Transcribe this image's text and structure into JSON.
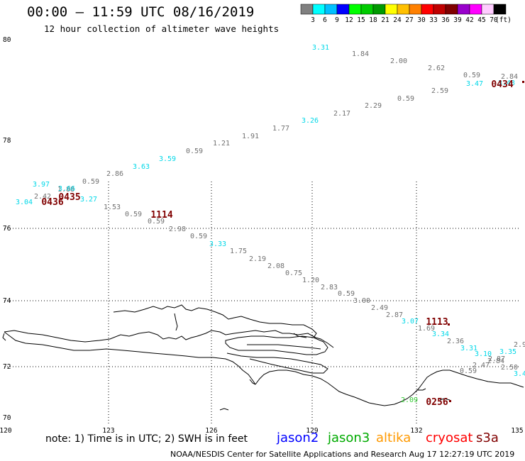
{
  "header": {
    "title": "00:00 – 11:59 UTC 08/16/2019",
    "subtitle": "12 hour collection of altimeter wave heights"
  },
  "colorbar": {
    "colors": [
      "#808080",
      "#00ffff",
      "#00c0ff",
      "#0000ff",
      "#00ff00",
      "#00cc00",
      "#009900",
      "#ffff00",
      "#ffc000",
      "#ff8000",
      "#ff0000",
      "#c00000",
      "#800000",
      "#9900cc",
      "#ff00ff",
      "#ffccff",
      "#000000"
    ],
    "labels": [
      "3",
      "6",
      "9",
      "12",
      "15",
      "18",
      "21",
      "24",
      "27",
      "30",
      "33",
      "36",
      "39",
      "42",
      "45",
      "70"
    ],
    "unit": "(ft)"
  },
  "axes": {
    "lon_labels": [
      "120",
      "123",
      "126",
      "129",
      "132",
      "135"
    ],
    "lat_labels": [
      "80",
      "78",
      "76",
      "74",
      "72",
      "70"
    ]
  },
  "swh_labels": [
    {
      "t": "3.31",
      "c": "#00d8e8"
    },
    {
      "t": "1.84",
      "c": "#707070"
    },
    {
      "t": "2.00",
      "c": "#707070"
    },
    {
      "t": "2.62",
      "c": "#707070"
    },
    {
      "t": "0.59",
      "c": "#707070"
    },
    {
      "t": "2.84",
      "c": "#707070"
    },
    {
      "t": "3.47",
      "c": "#00d8e8"
    },
    {
      "t": "3.43",
      "c": "#00d8e8"
    },
    {
      "t": "2.59",
      "c": "#707070"
    },
    {
      "t": "0.59",
      "c": "#707070"
    },
    {
      "t": "2.29",
      "c": "#707070"
    },
    {
      "t": "2.17",
      "c": "#707070"
    },
    {
      "t": "3.26",
      "c": "#00d8e8"
    },
    {
      "t": "1.77",
      "c": "#707070"
    },
    {
      "t": "1.91",
      "c": "#707070"
    },
    {
      "t": "1.21",
      "c": "#707070"
    },
    {
      "t": "0.59",
      "c": "#707070"
    },
    {
      "t": "3.59",
      "c": "#00d8e8"
    },
    {
      "t": "3.63",
      "c": "#00d8e8"
    },
    {
      "t": "2.86",
      "c": "#707070"
    },
    {
      "t": "0.59",
      "c": "#707070"
    },
    {
      "t": "3.97",
      "c": "#00d8e8"
    },
    {
      "t": "1.88",
      "c": "#707070"
    },
    {
      "t": "3.66",
      "c": "#00d8e8"
    },
    {
      "t": "2.42",
      "c": "#707070"
    },
    {
      "t": "3.27",
      "c": "#00d8e8"
    },
    {
      "t": "3.04",
      "c": "#00d8e8"
    },
    {
      "t": "1.53",
      "c": "#707070"
    },
    {
      "t": "0.59",
      "c": "#707070"
    },
    {
      "t": "0.59",
      "c": "#707070"
    },
    {
      "t": "2.98",
      "c": "#707070"
    },
    {
      "t": "0.59",
      "c": "#707070"
    },
    {
      "t": "3.33",
      "c": "#00d8e8"
    },
    {
      "t": "1.75",
      "c": "#707070"
    },
    {
      "t": "2.19",
      "c": "#707070"
    },
    {
      "t": "2.08",
      "c": "#707070"
    },
    {
      "t": "0.75",
      "c": "#707070"
    },
    {
      "t": "1.20",
      "c": "#707070"
    },
    {
      "t": "2.83",
      "c": "#707070"
    },
    {
      "t": "0.59",
      "c": "#707070"
    },
    {
      "t": "3.00",
      "c": "#707070"
    },
    {
      "t": "2.49",
      "c": "#707070"
    },
    {
      "t": "2.87",
      "c": "#707070"
    },
    {
      "t": "3.07",
      "c": "#00d8e8"
    },
    {
      "t": "1.69",
      "c": "#707070"
    },
    {
      "t": "3.34",
      "c": "#00d8e8"
    },
    {
      "t": "2.36",
      "c": "#707070"
    },
    {
      "t": "3.31",
      "c": "#00d8e8"
    },
    {
      "t": "3.10",
      "c": "#00d8e8"
    },
    {
      "t": "3.35",
      "c": "#00d8e8"
    },
    {
      "t": "2.87",
      "c": "#707070"
    },
    {
      "t": "2.84",
      "c": "#707070"
    },
    {
      "t": "2.9",
      "c": "#707070"
    },
    {
      "t": "2.47",
      "c": "#707070"
    },
    {
      "t": "2.50",
      "c": "#707070"
    },
    {
      "t": "0.59",
      "c": "#707070"
    },
    {
      "t": "3.4",
      "c": "#00d8e8"
    },
    {
      "t": "2.09",
      "c": "#33cc33"
    }
  ],
  "time_labels": [
    {
      "t": "0434",
      "c": "#800000"
    },
    {
      "t": "0435",
      "c": "#800000"
    },
    {
      "t": "0436",
      "c": "#800000"
    },
    {
      "t": "1114",
      "c": "#800000"
    },
    {
      "t": "1113",
      "c": "#800000"
    },
    {
      "t": "0256",
      "c": "#800000"
    }
  ],
  "footer": {
    "note": "note:  1) Time is in UTC;  2) SWH is in feet",
    "satellites": [
      {
        "name": "jason2",
        "color": "#0000ff"
      },
      {
        "name": "jason3",
        "color": "#00aa00"
      },
      {
        "name": "altika",
        "color": "#ff9900"
      },
      {
        "name": "cryosat",
        "color": "#ff0000"
      },
      {
        "name": "s3a",
        "color": "#800000"
      }
    ],
    "credit": "NOAA/NESDIS Center for Satellite Applications and Research     Aug 17 12:27:19 UTC 2019"
  }
}
